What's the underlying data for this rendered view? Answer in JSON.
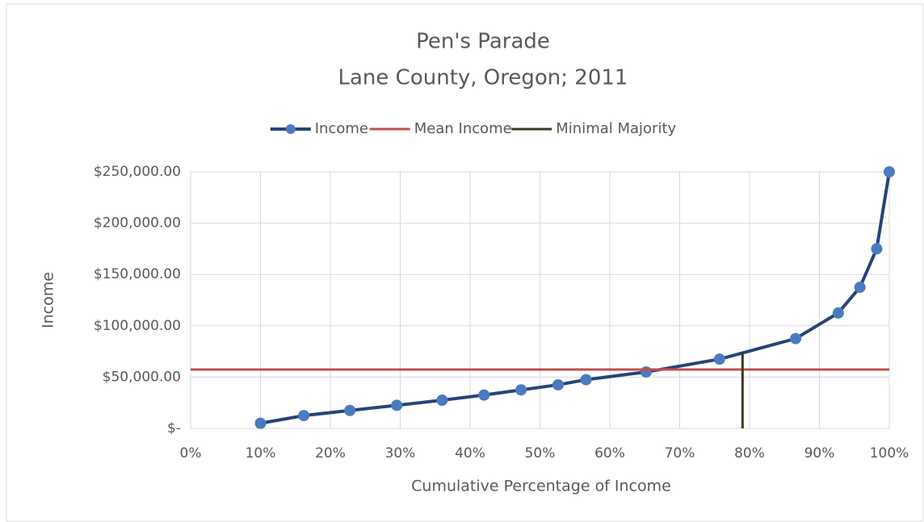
{
  "chart_data": {
    "type": "line",
    "title": "Pen's Parade",
    "subtitle": "Lane County, Oregon; 2011",
    "x_label": "Cumulative Percentage of Income",
    "y_label": "Income",
    "xlim": [
      0,
      100
    ],
    "xticks": [
      {
        "value": 0,
        "label": "0%"
      },
      {
        "value": 10,
        "label": "10%"
      },
      {
        "value": 20,
        "label": "20%"
      },
      {
        "value": 30,
        "label": "30%"
      },
      {
        "value": 40,
        "label": "40%"
      },
      {
        "value": 50,
        "label": "50%"
      },
      {
        "value": 60,
        "label": "60%"
      },
      {
        "value": 70,
        "label": "70%"
      },
      {
        "value": 80,
        "label": "80%"
      },
      {
        "value": 90,
        "label": "90%"
      },
      {
        "value": 100,
        "label": "100%"
      }
    ],
    "ylim": [
      0,
      250000
    ],
    "yticks": [
      {
        "value": 0,
        "label": "$-"
      },
      {
        "value": 50000,
        "label": "$50,000.00"
      },
      {
        "value": 100000,
        "label": "$100,000.00"
      },
      {
        "value": 150000,
        "label": "$150,000.00"
      },
      {
        "value": 200000,
        "label": "$200,000.00"
      },
      {
        "value": 250000,
        "label": "$250,000.00"
      }
    ],
    "grid": true,
    "legend": "top",
    "series": [
      {
        "name": "Income",
        "color": "#264478",
        "marker_color": "#4a7bc0",
        "markers": true,
        "x": [
          10,
          16.2,
          22.8,
          29.5,
          36,
          42,
          47.3,
          52.6,
          56.6,
          65.2,
          75.7,
          86.6,
          92.7,
          95.8,
          98.2,
          100
        ],
        "values": [
          5000,
          12500,
          17500,
          22500,
          27500,
          32500,
          37500,
          42500,
          47500,
          55000,
          67500,
          87500,
          112500,
          137500,
          175000,
          250000
        ]
      },
      {
        "name": "Mean Income",
        "color": "#c0504d",
        "markers": false,
        "x": [
          0,
          100
        ],
        "values": [
          57400,
          57400
        ]
      },
      {
        "name": "Minimal Majority",
        "color": "#3b3a1f",
        "markers": false,
        "x": [
          79,
          79
        ],
        "values": [
          0,
          74000
        ]
      }
    ]
  }
}
